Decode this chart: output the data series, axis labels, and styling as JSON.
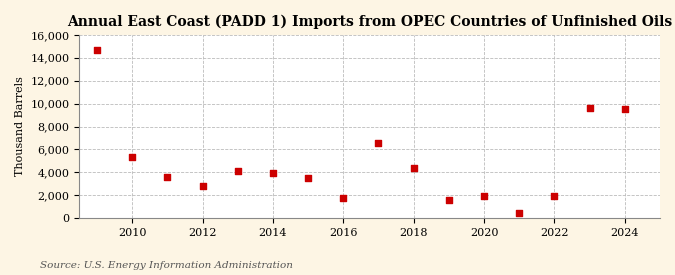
{
  "title": "Annual East Coast (PADD 1) Imports from OPEC Countries of Unfinished Oils",
  "ylabel": "Thousand Barrels",
  "source": "Source: U.S. Energy Information Administration",
  "background_color": "#fdf5e4",
  "plot_bg_color": "#ffffff",
  "marker_color": "#cc0000",
  "years": [
    2009,
    2010,
    2011,
    2012,
    2013,
    2014,
    2015,
    2016,
    2017,
    2018,
    2019,
    2020,
    2021,
    2022,
    2023,
    2024
  ],
  "values": [
    14700,
    5300,
    3600,
    2800,
    4150,
    3950,
    3550,
    1750,
    6600,
    4400,
    1600,
    1950,
    500,
    1900,
    9600,
    9500
  ],
  "ylim": [
    0,
    16000
  ],
  "yticks": [
    0,
    2000,
    4000,
    6000,
    8000,
    10000,
    12000,
    14000,
    16000
  ],
  "xlim": [
    2008.5,
    2025.0
  ],
  "xticks": [
    2010,
    2012,
    2014,
    2016,
    2018,
    2020,
    2022,
    2024
  ],
  "marker_size": 5,
  "title_fontsize": 10,
  "axis_fontsize": 8,
  "source_fontsize": 7.5,
  "grid_color": "#bbbbbb",
  "spine_color": "#888888"
}
